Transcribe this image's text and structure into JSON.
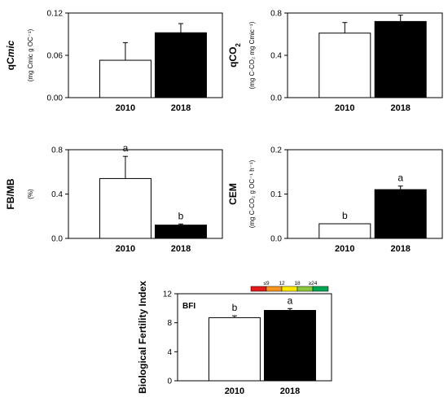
{
  "chart_data": [
    {
      "type": "bar",
      "ylabel": "qCmic",
      "ylabel_parts": [
        {
          "t": "q",
          "s": "normal"
        },
        {
          "t": "C",
          "s": "normal"
        },
        {
          "t": "mic",
          "s": "italic"
        }
      ],
      "ylabel_sub": "(mg Cmic g OC⁻¹)",
      "categories": [
        "2010",
        "2018"
      ],
      "values": [
        0.053,
        0.092
      ],
      "errors": [
        0.025,
        0.013
      ],
      "fills": [
        "#ffffff",
        "#000000"
      ],
      "letters": [
        "",
        ""
      ],
      "ylim": [
        0,
        0.12
      ],
      "yticks": [
        0,
        0.06,
        0.12
      ],
      "ytick_labels": [
        "0.00",
        "0.06",
        "0.12"
      ]
    },
    {
      "type": "bar",
      "ylabel": "qCO2",
      "ylabel_parts": [
        {
          "t": "qCO",
          "s": "normal"
        },
        {
          "t": "2",
          "s": "sub"
        }
      ],
      "ylabel_sub": "(mg C-CO₂ mg Cmic⁻¹)",
      "categories": [
        "2010",
        "2018"
      ],
      "values": [
        0.61,
        0.72
      ],
      "errors": [
        0.1,
        0.06
      ],
      "fills": [
        "#ffffff",
        "#000000"
      ],
      "letters": [
        "",
        ""
      ],
      "ylim": [
        0,
        0.8
      ],
      "yticks": [
        0,
        0.4,
        0.8
      ],
      "ytick_labels": [
        "0.0",
        "0.4",
        "0.8"
      ]
    },
    {
      "type": "bar",
      "ylabel": "FB/MB",
      "ylabel_parts": [
        {
          "t": "FB/MB",
          "s": "normal"
        }
      ],
      "ylabel_sub": "(%)",
      "categories": [
        "2010",
        "2018"
      ],
      "values": [
        0.54,
        0.12
      ],
      "errors": [
        0.2,
        0.01
      ],
      "fills": [
        "#ffffff",
        "#000000"
      ],
      "letters": [
        "a",
        "b"
      ],
      "ylim": [
        0,
        0.8
      ],
      "yticks": [
        0,
        0.4,
        0.8
      ],
      "ytick_labels": [
        "0.0",
        "0.4",
        "0.8"
      ]
    },
    {
      "type": "bar",
      "ylabel": "CEM",
      "ylabel_parts": [
        {
          "t": "CEM",
          "s": "normal"
        }
      ],
      "ylabel_sub": "(mg C-CO₂ g OC⁻¹ h⁻¹)",
      "categories": [
        "2010",
        "2018"
      ],
      "values": [
        0.033,
        0.11
      ],
      "errors": [
        0,
        0.008
      ],
      "fills": [
        "#ffffff",
        "#000000"
      ],
      "letters": [
        "b",
        "a"
      ],
      "ylim": [
        0,
        0.2
      ],
      "yticks": [
        0,
        0.1,
        0.2
      ],
      "ytick_labels": [
        "0.0",
        "0.1",
        "0.2"
      ]
    },
    {
      "type": "bar",
      "ylabel": "Biological Fertility Index",
      "ylabel_parts": [
        {
          "t": "Biological Fertility Index",
          "s": "normal"
        }
      ],
      "ylabel_sub": "",
      "inset_label": "BFI",
      "categories": [
        "2010",
        "2018"
      ],
      "values": [
        8.7,
        9.7
      ],
      "errors": [
        0.25,
        0.25
      ],
      "fills": [
        "#ffffff",
        "#000000"
      ],
      "letters": [
        "b",
        "a"
      ],
      "ylim": [
        0,
        12
      ],
      "yticks": [
        0,
        4,
        8,
        12
      ],
      "ytick_labels": [
        "0",
        "4",
        "8",
        "12"
      ],
      "scale": {
        "labels": [
          "≤9",
          "12",
          "18",
          "≥24"
        ],
        "colors": [
          "#e31a1c",
          "#f7941d",
          "#ffe800",
          "#8cc63f",
          "#00a651"
        ]
      }
    }
  ]
}
